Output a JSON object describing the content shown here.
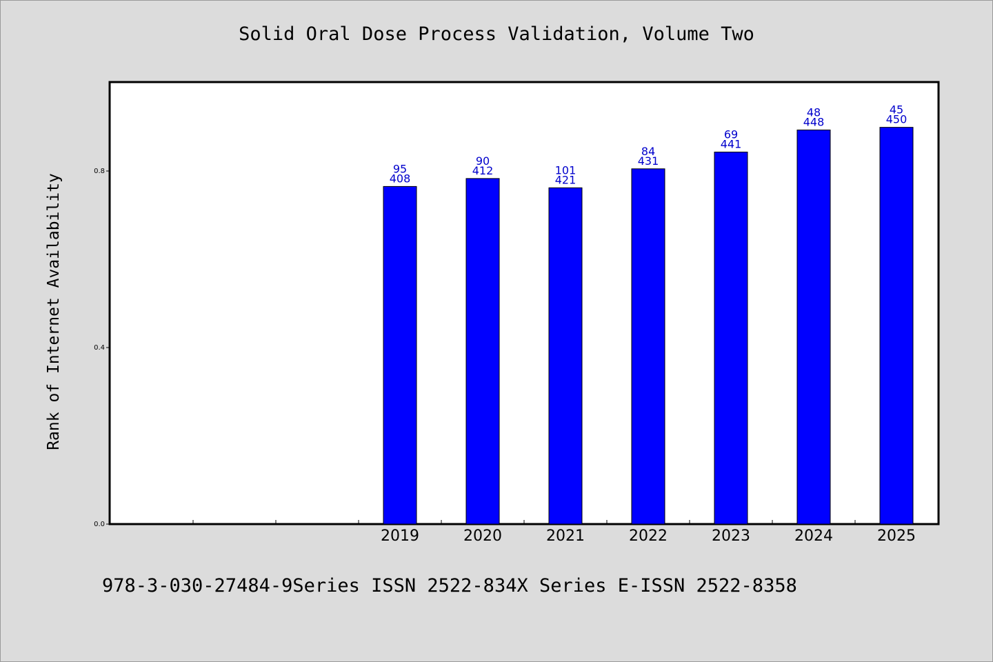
{
  "footer": "978-3-030-27484-9Series ISSN 2522-834X Series E-ISSN 2522-8358",
  "chart_data": {
    "type": "bar",
    "title": "Solid Oral Dose Process Validation, Volume Two",
    "xlabel": "",
    "ylabel": "Rank of Internet Availability",
    "categories": [
      "",
      "",
      "",
      "2019",
      "2020",
      "2021",
      "2022",
      "2023",
      "2024",
      "2025"
    ],
    "values": [
      null,
      null,
      null,
      0.765,
      0.783,
      0.762,
      0.805,
      0.843,
      0.893,
      0.899
    ],
    "bar_labels_top": [
      "",
      "",
      "",
      "95",
      "90",
      "101",
      "84",
      "69",
      "48",
      "45"
    ],
    "bar_labels_bottom": [
      "",
      "",
      "",
      "408",
      "412",
      "421",
      "431",
      "441",
      "448",
      "450"
    ],
    "y_ticks": [
      "0.0",
      "0.4",
      "0.8"
    ],
    "ylim": [
      0,
      1.0
    ],
    "grid": false,
    "bar_color": "#0000ff",
    "label_color": "#0000cc"
  }
}
